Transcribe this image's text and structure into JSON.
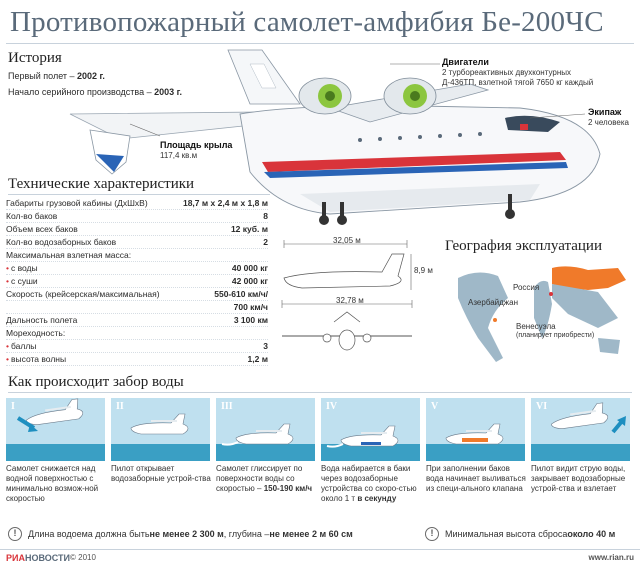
{
  "title": "Противопожарный самолет-амфибия Бе-200ЧС",
  "history": {
    "heading": "История",
    "first_flight_label": "Первый полет – ",
    "first_flight_value": "2002 г.",
    "serial_label": "Начало серийного производства – ",
    "serial_value": "2003 г."
  },
  "wing": {
    "label": "Площадь крыла",
    "value": "117,4 кв.м"
  },
  "engines": {
    "label": "Двигатели",
    "line1": "2 турбореактивных двухконтурных",
    "line2": "Д-436ТП, взлетной тягой 7650 кг каждый"
  },
  "crew": {
    "label": "Экипаж",
    "value": "2 человека"
  },
  "specs": {
    "heading": "Технические характеристики",
    "rows": [
      {
        "label": "Габариты грузовой кабины (ДхШхВ)",
        "value": "18,7 м х 2,4 м х 1,8 м"
      },
      {
        "label": "Кол-во баков",
        "value": "8"
      },
      {
        "label": "Объем всех баков",
        "value": "12 куб. м"
      },
      {
        "label": "Кол-во водозаборных баков",
        "value": "2"
      },
      {
        "label": "Максимальная взлетная масса:",
        "value": ""
      },
      {
        "label": "с воды",
        "value": "40 000 кг",
        "bullet": true
      },
      {
        "label": "с суши",
        "value": "42 000 кг",
        "bullet": true
      },
      {
        "label": "Скорость (крейсерская/максимальная)",
        "value": "550-610 км/ч/"
      },
      {
        "label": "",
        "value": "700 км/ч"
      },
      {
        "label": "Дальность полета",
        "value": "3 100 км"
      },
      {
        "label": "Мореходность:",
        "value": ""
      },
      {
        "label": "баллы",
        "value": "3",
        "bullet": true
      },
      {
        "label": "высота волны",
        "value": "1,2 м",
        "bullet": true
      }
    ]
  },
  "dimensions": {
    "length": "32,05 м",
    "height": "8,9 м",
    "span": "32,78 м"
  },
  "geography": {
    "heading": "География эксплуатации",
    "labels": [
      "Россия",
      "Азербайджан",
      "Венесуэла"
    ],
    "venezuela_note": "(планирует приобрести)"
  },
  "how": {
    "heading": "Как происходит забор воды",
    "steps": [
      {
        "num": "I",
        "text": "Самолет снижается над водной поверхностью с минимально возмож-ной скоростью",
        "bold": ""
      },
      {
        "num": "II",
        "text": "Пилот открывает водозаборные устрой-ства",
        "bold": ""
      },
      {
        "num": "III",
        "text": "Самолет глиссирует по поверхности воды со скоростью –",
        "bold": "150-190 км/ч"
      },
      {
        "num": "IV",
        "text": "Вода набирается в баки через водозаборные устройства со скоро-стью около 1 т",
        "bold": "в секунду"
      },
      {
        "num": "V",
        "text": "При заполнении баков вода начинает выливаться из специ-ального клапана",
        "bold": ""
      },
      {
        "num": "VI",
        "text": "Пилот видит струю воды, закрывает водозаборные устрой-ства и взлетает",
        "bold": ""
      }
    ]
  },
  "notes": {
    "note1_a": "Длина водоема должна быть ",
    "note1_b": "не менее 2 300 м",
    "note1_c": ", глубина – ",
    "note1_d": "не менее 2 м 60 см",
    "note2_a": "Минимальная высота сброса ",
    "note2_b": "около 40 м"
  },
  "footer": {
    "logo_r": "РИА",
    "logo_n": "НОВОСТИ",
    "copy": "© 2010",
    "site": "www.rian.ru"
  },
  "colors": {
    "accent": "#d9343a",
    "water": "#3a9fc4",
    "panel_sky": "#bfe0ef",
    "map_russia": "#f07a2a",
    "map_other": "#9fb8c8"
  }
}
